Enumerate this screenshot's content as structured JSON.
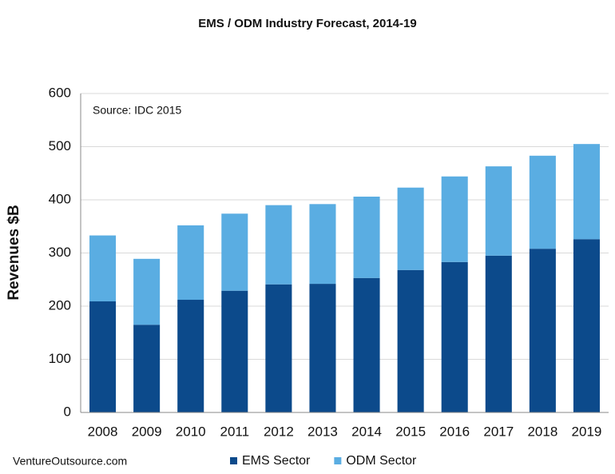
{
  "chart_data": {
    "type": "bar",
    "stacked": true,
    "title": "EMS / ODM Industry Forecast, 2014-19",
    "y_label": "Revenues $B",
    "annotations": [
      "Source: IDC 2015",
      "VentureOutsource.com"
    ],
    "categories": [
      "2008",
      "2009",
      "2010",
      "2011",
      "2012",
      "2013",
      "2014",
      "2015",
      "2016",
      "2017",
      "2018",
      "2019"
    ],
    "series": [
      {
        "name": "EMS Sector",
        "color": "#0c4a8b",
        "values": [
          209,
          165,
          212,
          229,
          241,
          242,
          253,
          268,
          283,
          295,
          308,
          326
        ]
      },
      {
        "name": "ODM Sector",
        "color": "#5aade2",
        "values": [
          124,
          124,
          140,
          145,
          149,
          150,
          153,
          155,
          161,
          168,
          175,
          179
        ]
      }
    ],
    "ylim": [
      0,
      600
    ],
    "yticks": [
      0,
      100,
      200,
      300,
      400,
      500,
      600
    ],
    "grid": true
  }
}
